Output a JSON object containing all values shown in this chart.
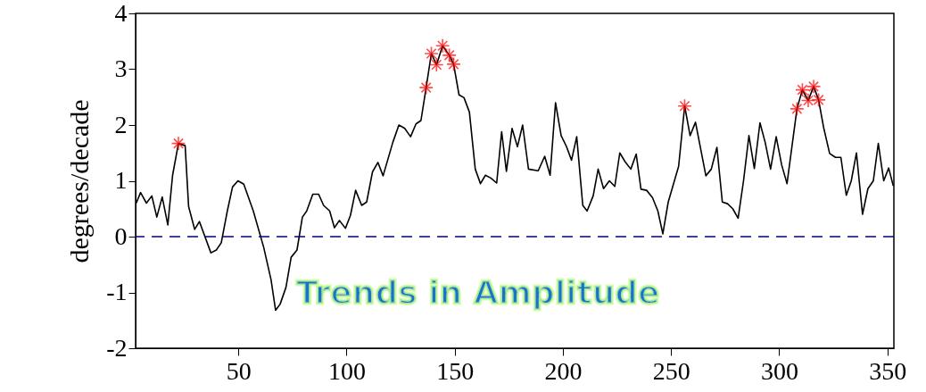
{
  "chart_data": {
    "type": "line",
    "ylabel": "degrees/decade",
    "annotations": [
      "Trends in Amplitude"
    ],
    "xlim": [
      2.5,
      353
    ],
    "ylim": [
      -2,
      4
    ],
    "xticks": [
      50,
      100,
      150,
      200,
      250,
      300,
      350
    ],
    "yticks": [
      -2,
      -1,
      0,
      1,
      2,
      3,
      4
    ],
    "grid": false,
    "ref_lines": [
      {
        "axis": "y",
        "value": 0,
        "color": "#00007f",
        "line_style": "dashed"
      }
    ],
    "series": [
      {
        "color": "#000000",
        "x": [
          2.8,
          4.8,
          7.5,
          10,
          12.3,
          14.8,
          17.4,
          19.6,
          22.3,
          25.4,
          27,
          29.8,
          32,
          37.3,
          39.8,
          42.1,
          44.9,
          47.3,
          49.8,
          52.5,
          56.9,
          61.7,
          65.1,
          67.2,
          69.3,
          72,
          74.4,
          77.1,
          79.6,
          81.6,
          84.4,
          87.1,
          89.4,
          92.2,
          94.4,
          96.7,
          99.5,
          101.8,
          104.2,
          107,
          109.3,
          112,
          114.5,
          116.9,
          121.4,
          124.2,
          126.9,
          129.6,
          132.1,
          134.4,
          136.8,
          139.2,
          141.6,
          144.4,
          147.5,
          149.5,
          152,
          154.3,
          156.8,
          159.5,
          161.9,
          164.2,
          166.7,
          169.4,
          171.7,
          173.9,
          176.5,
          179,
          181.4,
          184.1,
          188.6,
          191.6,
          194.1,
          196.6,
          199.2,
          201.6,
          204,
          206.4,
          209.2,
          211.2,
          214,
          216.3,
          218.8,
          221.5,
          224,
          226.3,
          228.8,
          231.4,
          233.9,
          236.1,
          238.7,
          241.4,
          243.9,
          246.2,
          248.7,
          251.4,
          253.5,
          256.3,
          258.8,
          261.3,
          266.1,
          268.6,
          271.2,
          273.7,
          276.1,
          278.5,
          281,
          283.5,
          286,
          288.5,
          291.1,
          293.5,
          296,
          298.6,
          301.1,
          303.6,
          308.2,
          310.7,
          313.4,
          315.9,
          318.2,
          320.5,
          323.3,
          326,
          328.5,
          331,
          333.3,
          335.7,
          338.5,
          341,
          343.5,
          345.8,
          348.3,
          350.6,
          352.7
        ],
        "values": [
          0.6,
          0.79,
          0.6,
          0.73,
          0.35,
          0.71,
          0.21,
          1.1,
          1.67,
          1.63,
          0.54,
          0.13,
          0.27,
          -0.29,
          -0.24,
          -0.11,
          0.46,
          0.89,
          1.0,
          0.94,
          0.46,
          -0.19,
          -0.77,
          -1.32,
          -1.21,
          -0.91,
          -0.37,
          -0.24,
          0.35,
          0.46,
          0.76,
          0.76,
          0.56,
          0.46,
          0.16,
          0.29,
          0.15,
          0.38,
          0.83,
          0.56,
          0.62,
          1.16,
          1.33,
          1.09,
          1.69,
          2.0,
          1.94,
          1.79,
          2.02,
          2.08,
          2.67,
          3.28,
          3.08,
          3.42,
          3.25,
          3.09,
          2.54,
          2.49,
          2.23,
          1.21,
          0.95,
          1.1,
          1.05,
          0.96,
          1.88,
          1.17,
          1.94,
          1.61,
          2.0,
          1.21,
          1.18,
          1.44,
          1.1,
          2.4,
          1.81,
          1.62,
          1.37,
          1.79,
          0.56,
          0.46,
          0.73,
          1.21,
          0.86,
          1.0,
          0.9,
          1.5,
          1.34,
          1.21,
          1.48,
          0.85,
          0.83,
          0.7,
          0.46,
          0.05,
          0.62,
          0.98,
          1.26,
          2.34,
          1.81,
          2.05,
          1.09,
          1.21,
          1.6,
          0.62,
          0.59,
          0.5,
          0.33,
          1.0,
          1.81,
          1.22,
          2.04,
          1.69,
          1.21,
          1.79,
          1.29,
          0.95,
          2.29,
          2.63,
          2.44,
          2.69,
          2.45,
          1.96,
          1.49,
          1.42,
          1.42,
          0.74,
          1.0,
          1.5,
          0.4,
          0.86,
          1.0,
          1.67,
          1.0,
          1.23,
          0.91
        ]
      },
      {
        "type": "scatter",
        "color": "#ff0000",
        "marker": "cross",
        "x": [
          22.3,
          136.8,
          139.2,
          141.6,
          144.4,
          147.5,
          149.5,
          256.3,
          308.2,
          310.7,
          313.4,
          315.9,
          318.2
        ],
        "values": [
          1.67,
          2.67,
          3.28,
          3.08,
          3.42,
          3.25,
          3.09,
          2.34,
          2.29,
          2.63,
          2.44,
          2.69,
          2.45
        ]
      }
    ]
  }
}
